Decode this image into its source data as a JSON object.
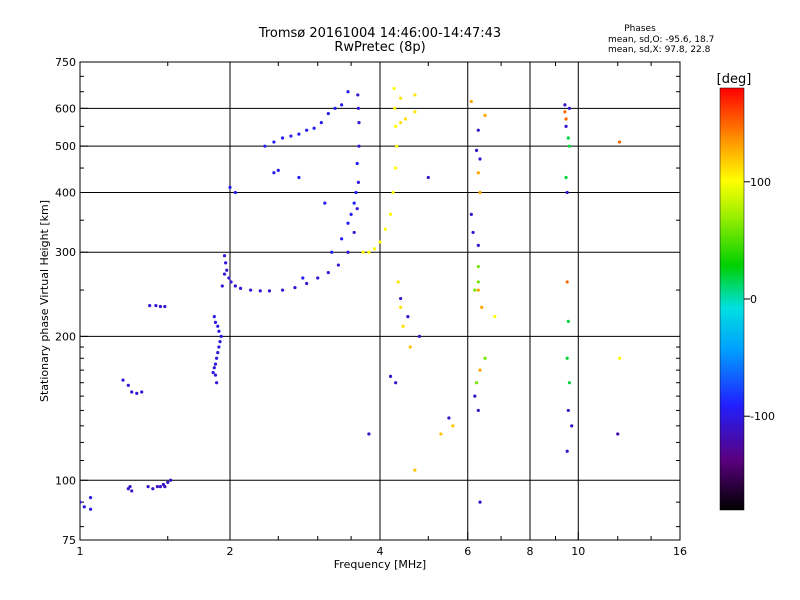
{
  "chart_data": {
    "type": "scatter",
    "title": "Tromsø 20161004 14:46:00-14:47:43",
    "subtitle": "RwPretec (8p)",
    "xlabel": "Frequency [MHz]",
    "ylabel": "Stationary phase Virtual Height [km]",
    "x_scale": "log",
    "y_scale": "log",
    "xlim": [
      1,
      16
    ],
    "ylim": [
      75,
      750
    ],
    "x_ticks": [
      1,
      2,
      4,
      6,
      8,
      10,
      16
    ],
    "x_tick_labels": [
      "1",
      "2",
      "4",
      "6",
      "8",
      "10",
      "16"
    ],
    "y_ticks": [
      75,
      100,
      200,
      300,
      400,
      500,
      600,
      750
    ],
    "y_tick_labels": [
      "75",
      "100",
      "200",
      "300",
      "400",
      "500",
      "600",
      "750"
    ],
    "x_gridlines": [
      2,
      4,
      6,
      8,
      10
    ],
    "y_gridlines": [
      100,
      200,
      300,
      400,
      500,
      600
    ],
    "grid": true,
    "phase_stats": {
      "header": "Phases",
      "line1": "mean, sd,O: -95.6, 18.7",
      "line2": "mean, sd,X:  97.8, 22.8"
    },
    "colorbar": {
      "label": "[deg]",
      "range": [
        -180,
        180
      ],
      "ticks": [
        100,
        0,
        -100
      ],
      "tick_labels": [
        "100",
        "0",
        "-100"
      ]
    },
    "traces": [
      {
        "phase": -100,
        "points": [
          [
            1.0,
            90
          ],
          [
            1.05,
            87
          ],
          [
            1.05,
            92
          ],
          [
            1.02,
            88
          ]
        ]
      },
      {
        "phase": -110,
        "points": [
          [
            1.25,
            96
          ],
          [
            1.27,
            95
          ],
          [
            1.26,
            97
          ],
          [
            1.37,
            97
          ],
          [
            1.4,
            96
          ],
          [
            1.43,
            97
          ],
          [
            1.45,
            97
          ],
          [
            1.47,
            98
          ],
          [
            1.5,
            99
          ],
          [
            1.52,
            100
          ],
          [
            1.48,
            97
          ]
        ]
      },
      {
        "phase": -105,
        "points": [
          [
            1.22,
            162
          ],
          [
            1.25,
            158
          ],
          [
            1.27,
            153
          ],
          [
            1.3,
            152
          ],
          [
            1.33,
            153
          ]
        ]
      },
      {
        "phase": -105,
        "points": [
          [
            1.38,
            232
          ],
          [
            1.42,
            232
          ],
          [
            1.45,
            231
          ],
          [
            1.48,
            231
          ]
        ]
      },
      {
        "phase": -100,
        "points": [
          [
            1.85,
            168
          ],
          [
            1.86,
            172
          ],
          [
            1.87,
            175
          ],
          [
            1.88,
            180
          ],
          [
            1.89,
            185
          ],
          [
            1.9,
            190
          ],
          [
            1.91,
            195
          ],
          [
            1.92,
            200
          ],
          [
            1.88,
            160
          ],
          [
            1.87,
            166
          ],
          [
            1.9,
            205
          ],
          [
            1.89,
            210
          ],
          [
            1.86,
            220
          ],
          [
            1.87,
            214
          ]
        ]
      },
      {
        "phase": -105,
        "points": [
          [
            1.93,
            255
          ],
          [
            1.95,
            270
          ],
          [
            1.96,
            285
          ],
          [
            1.95,
            295
          ],
          [
            1.97,
            275
          ],
          [
            1.99,
            265
          ],
          [
            2.01,
            260
          ],
          [
            2.05,
            255
          ],
          [
            2.1,
            252
          ],
          [
            2.2,
            250
          ],
          [
            2.3,
            249
          ],
          [
            2.4,
            249
          ],
          [
            2.55,
            250
          ],
          [
            2.7,
            253
          ],
          [
            2.85,
            258
          ],
          [
            3.0,
            265
          ],
          [
            3.15,
            272
          ],
          [
            3.3,
            282
          ],
          [
            3.45,
            300
          ],
          [
            3.55,
            330
          ],
          [
            3.6,
            370
          ],
          [
            3.62,
            420
          ],
          [
            3.63,
            500
          ],
          [
            3.63,
            560
          ],
          [
            3.62,
            600
          ],
          [
            3.61,
            640
          ]
        ]
      },
      {
        "phase": -95,
        "points": [
          [
            2.0,
            410
          ],
          [
            2.05,
            400
          ],
          [
            2.35,
            500
          ],
          [
            2.45,
            510
          ],
          [
            2.55,
            520
          ],
          [
            2.65,
            525
          ],
          [
            2.75,
            530
          ],
          [
            2.85,
            540
          ],
          [
            2.95,
            545
          ],
          [
            3.05,
            560
          ],
          [
            3.15,
            585
          ],
          [
            3.25,
            600
          ],
          [
            3.35,
            610
          ],
          [
            3.45,
            650
          ],
          [
            2.45,
            440
          ],
          [
            2.5,
            445
          ],
          [
            2.75,
            430
          ],
          [
            3.1,
            380
          ]
        ]
      },
      {
        "phase": -90,
        "points": [
          [
            2.8,
            265
          ],
          [
            3.2,
            300
          ],
          [
            3.35,
            320
          ],
          [
            3.45,
            345
          ],
          [
            3.5,
            360
          ],
          [
            3.55,
            380
          ],
          [
            3.58,
            400
          ],
          [
            3.6,
            460
          ]
        ]
      },
      {
        "phase": 100,
        "points": [
          [
            3.7,
            300
          ],
          [
            3.8,
            300
          ],
          [
            3.9,
            305
          ],
          [
            4.0,
            315
          ],
          [
            4.1,
            335
          ],
          [
            4.2,
            360
          ],
          [
            4.25,
            400
          ],
          [
            4.3,
            450
          ],
          [
            4.32,
            500
          ],
          [
            4.3,
            550
          ],
          [
            4.28,
            600
          ],
          [
            4.27,
            660
          ]
        ]
      },
      {
        "phase": 110,
        "points": [
          [
            4.4,
            630
          ],
          [
            4.4,
            560
          ],
          [
            4.7,
            640
          ],
          [
            4.7,
            590
          ],
          [
            4.5,
            570
          ],
          [
            4.35,
            260
          ],
          [
            4.4,
            230
          ],
          [
            4.45,
            210
          ]
        ]
      },
      {
        "phase": 120,
        "points": [
          [
            4.6,
            190
          ],
          [
            4.7,
            105
          ],
          [
            5.3,
            125
          ],
          [
            5.6,
            130
          ]
        ]
      },
      {
        "phase": -110,
        "points": [
          [
            3.8,
            125
          ],
          [
            4.2,
            165
          ],
          [
            4.3,
            160
          ],
          [
            4.4,
            240
          ],
          [
            4.55,
            220
          ],
          [
            4.8,
            200
          ],
          [
            5.0,
            430
          ],
          [
            5.5,
            135
          ]
        ]
      },
      {
        "phase": -110,
        "points": [
          [
            6.1,
            360
          ],
          [
            6.15,
            330
          ],
          [
            6.3,
            310
          ],
          [
            6.3,
            540
          ],
          [
            6.25,
            490
          ],
          [
            6.35,
            470
          ],
          [
            6.2,
            150
          ],
          [
            6.3,
            140
          ],
          [
            6.35,
            90
          ]
        ]
      },
      {
        "phase": 130,
        "points": [
          [
            6.1,
            620
          ],
          [
            6.5,
            580
          ],
          [
            6.3,
            440
          ],
          [
            6.35,
            400
          ],
          [
            6.3,
            250
          ],
          [
            6.4,
            230
          ],
          [
            6.35,
            170
          ]
        ]
      },
      {
        "phase": 60,
        "points": [
          [
            6.3,
            280
          ],
          [
            6.3,
            260
          ],
          [
            6.2,
            250
          ],
          [
            6.25,
            160
          ],
          [
            6.5,
            180
          ]
        ]
      },
      {
        "phase": -110,
        "points": [
          [
            9.4,
            610
          ],
          [
            9.6,
            600
          ],
          [
            9.5,
            400
          ],
          [
            9.45,
            550
          ],
          [
            9.55,
            140
          ],
          [
            9.7,
            130
          ],
          [
            9.5,
            115
          ]
        ]
      },
      {
        "phase": 150,
        "points": [
          [
            9.4,
            590
          ],
          [
            9.45,
            570
          ],
          [
            9.5,
            260
          ],
          [
            12.1,
            510
          ]
        ]
      },
      {
        "phase": 20,
        "points": [
          [
            9.55,
            520
          ],
          [
            9.6,
            500
          ],
          [
            9.45,
            430
          ],
          [
            9.5,
            180
          ],
          [
            9.6,
            160
          ],
          [
            9.55,
            215
          ]
        ]
      },
      {
        "phase": -120,
        "points": [
          [
            12.0,
            125
          ]
        ]
      },
      {
        "phase": 100,
        "points": [
          [
            12.1,
            180
          ],
          [
            6.8,
            220
          ]
        ]
      }
    ]
  }
}
